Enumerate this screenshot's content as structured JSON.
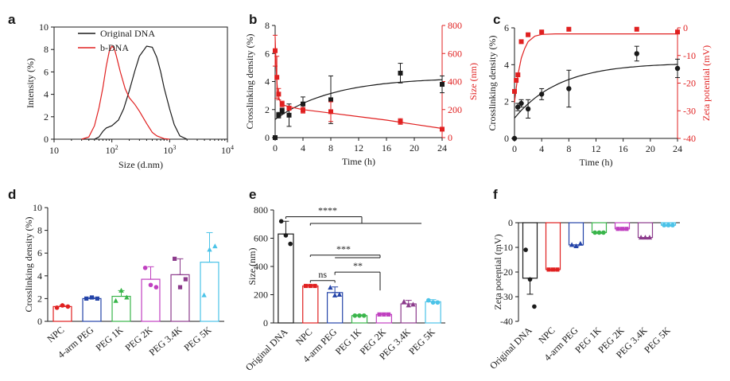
{
  "panels": {
    "a": "a",
    "b": "b",
    "c": "c",
    "d": "d",
    "e": "e",
    "f": "f"
  },
  "chart_data": [
    {
      "id": "a",
      "type": "line",
      "xlabel": "Size (d.nm)",
      "ylabel": "Intensity (%)",
      "xscale": "log",
      "xlim": [
        10,
        10000
      ],
      "ylim": [
        0,
        10
      ],
      "xtick_values": [
        10,
        100,
        1000,
        10000
      ],
      "xtick_labels": [
        [
          "10"
        ],
        [
          "10",
          "2"
        ],
        [
          "10",
          "3"
        ],
        [
          "10",
          "4"
        ]
      ],
      "yticks": [
        0,
        2,
        4,
        6,
        8,
        10
      ],
      "legend_position": "top-right",
      "series": [
        {
          "name": "Original DNA",
          "color": "#1a1a1a",
          "x": [
            30,
            50,
            60,
            70,
            80,
            100,
            130,
            160,
            200,
            250,
            300,
            400,
            500,
            600,
            700,
            800,
            1000,
            1200,
            1500,
            2000
          ],
          "y": [
            0,
            0,
            0.2,
            0.7,
            1.0,
            1.2,
            1.7,
            2.7,
            4.3,
            6.1,
            7.4,
            8.3,
            8.2,
            7.3,
            6.0,
            4.6,
            2.7,
            1.3,
            0.3,
            0
          ]
        },
        {
          "name": "b-DNA",
          "color": "#e02020",
          "x": [
            30,
            40,
            50,
            60,
            70,
            80,
            90,
            100,
            110,
            120,
            140,
            170,
            200,
            250,
            300,
            400,
            500,
            600,
            800,
            1000
          ],
          "y": [
            0,
            0.2,
            1.2,
            2.8,
            4.6,
            6.5,
            7.8,
            8.3,
            8.1,
            7.4,
            6.0,
            4.5,
            3.7,
            3.1,
            2.5,
            1.4,
            0.6,
            0.3,
            0.05,
            0
          ]
        }
      ]
    },
    {
      "id": "b",
      "type": "scatter",
      "xlabel": "Time (h)",
      "ylabel": "Crosslinking density (%)",
      "y2label": "Size (nm)",
      "xlim": [
        0,
        24
      ],
      "ylim": [
        0,
        8
      ],
      "y2lim": [
        0,
        800
      ],
      "xticks": [
        0,
        4,
        8,
        12,
        16,
        20,
        24
      ],
      "yticks": [
        0,
        2,
        4,
        6,
        8
      ],
      "y2ticks": [
        0,
        200,
        400,
        600,
        800
      ],
      "series": [
        {
          "name": "",
          "axis": "left",
          "color": "#1a1a1a",
          "marker": "square",
          "x": [
            0,
            0.5,
            1,
            2,
            4,
            8,
            18,
            24
          ],
          "y": [
            0,
            1.6,
            1.9,
            1.6,
            2.4,
            2.7,
            4.6,
            3.8
          ],
          "err": [
            0,
            0.2,
            0.2,
            0.8,
            0.5,
            1.7,
            0.7,
            0.6
          ],
          "fit": {
            "a": 4.3,
            "b": 3.0,
            "k": 0.12
          }
        },
        {
          "name": "",
          "axis": "right",
          "color": "#e02020",
          "marker": "square",
          "x": [
            0,
            0.25,
            0.5,
            1,
            2,
            4,
            8,
            18,
            24
          ],
          "y": [
            620,
            430,
            310,
            240,
            210,
            195,
            185,
            115,
            60
          ],
          "err": [
            110,
            150,
            40,
            20,
            15,
            20,
            70,
            20,
            0
          ],
          "fit": {
            "points": [
              [
                0,
                720
              ],
              [
                0.1,
                560
              ],
              [
                0.2,
                430
              ],
              [
                0.35,
                330
              ],
              [
                0.6,
                270
              ],
              [
                1,
                235
              ],
              [
                2,
                220
              ],
              [
                4,
                200
              ],
              [
                8,
                175
              ],
              [
                12,
                150
              ],
              [
                16,
                125
              ],
              [
                20,
                95
              ],
              [
                24,
                65
              ]
            ]
          }
        }
      ]
    },
    {
      "id": "c",
      "type": "scatter",
      "xlabel": "Time (h)",
      "ylabel": "Crosslinking density (%)",
      "y2label": "Zeta potential (mV)",
      "xlim": [
        0,
        24
      ],
      "ylim": [
        0,
        6
      ],
      "y2lim": [
        -40,
        0
      ],
      "xticks": [
        0,
        4,
        8,
        12,
        16,
        20,
        24
      ],
      "yticks": [
        0,
        2,
        4,
        6
      ],
      "y2ticks": [
        0,
        -10,
        -20,
        -30,
        -40
      ],
      "series": [
        {
          "name": "",
          "axis": "left",
          "color": "#1a1a1a",
          "marker": "circle",
          "x": [
            0,
            0.5,
            1,
            2,
            4,
            8,
            18,
            24
          ],
          "y": [
            0,
            1.7,
            1.9,
            1.6,
            2.4,
            2.7,
            4.6,
            3.8
          ],
          "err": [
            0,
            0.2,
            0.2,
            0.5,
            0.3,
            1.0,
            0.4,
            0.5
          ],
          "fit": {
            "a": 4.1,
            "b": 3.0,
            "k": 0.15
          }
        },
        {
          "name": "",
          "axis": "right",
          "color": "#e02020",
          "marker": "square",
          "x": [
            0,
            0.25,
            0.5,
            1,
            2,
            4,
            8,
            18,
            24
          ],
          "y": [
            -23,
            -19,
            -17,
            -5,
            -2.5,
            -1.5,
            -0.5,
            -0.5,
            -1.5
          ],
          "err": [
            0,
            0,
            0,
            0,
            0,
            0,
            0,
            0,
            0
          ],
          "fit": {
            "points": [
              [
                0,
                -27
              ],
              [
                0.25,
                -22
              ],
              [
                0.5,
                -17
              ],
              [
                1,
                -11
              ],
              [
                1.5,
                -7.5
              ],
              [
                2,
                -5
              ],
              [
                3,
                -3
              ],
              [
                4,
                -2.4
              ],
              [
                6,
                -2.2
              ],
              [
                10,
                -2.2
              ],
              [
                16,
                -2.2
              ],
              [
                24,
                -2.2
              ]
            ]
          }
        }
      ]
    },
    {
      "id": "d",
      "type": "bar",
      "ylabel": "Crosslinking density (%)",
      "ylim": [
        0,
        10
      ],
      "yticks": [
        0,
        2,
        4,
        6,
        8,
        10
      ],
      "categories": [
        "NPC",
        "4-arm PEG",
        "PEG 1K",
        "PEG 2K",
        "PEG 3.4K",
        "PEG 5K"
      ],
      "values": [
        1.3,
        2.0,
        2.2,
        3.7,
        4.1,
        5.2
      ],
      "err": [
        0.1,
        0.1,
        0.5,
        1.1,
        1.4,
        2.6
      ],
      "colors": [
        "#e02020",
        "#2444a8",
        "#39b54a",
        "#c040c0",
        "#8c3b8c",
        "#4cc3e8"
      ],
      "points": [
        [
          1.2,
          1.4,
          1.3
        ],
        [
          2.0,
          2.1,
          2.0
        ],
        [
          1.8,
          2.7,
          2.1
        ],
        [
          4.7,
          3.2,
          3.0
        ],
        [
          5.5,
          3.0,
          3.7
        ],
        [
          2.3,
          6.3,
          6.6
        ]
      ]
    },
    {
      "id": "e",
      "type": "bar",
      "ylabel": "Size (nm)",
      "ylim": [
        0,
        800
      ],
      "yticks": [
        0,
        200,
        400,
        600,
        800
      ],
      "categories": [
        "Original DNA",
        "NPC",
        "4-arm PEG",
        "PEG 1K",
        "PEG 2K",
        "PEG 3.4K",
        "PEG 5K"
      ],
      "values": [
        630,
        262,
        215,
        52,
        60,
        135,
        150
      ],
      "err": [
        90,
        8,
        40,
        5,
        10,
        25,
        15
      ],
      "colors": [
        "#1a1a1a",
        "#e02020",
        "#2444a8",
        "#39b54a",
        "#c040c0",
        "#8c3b8c",
        "#4cc3e8"
      ],
      "points": [
        [
          720,
          620,
          560
        ],
        [
          262,
          262,
          262
        ],
        [
          250,
          195,
          200
        ],
        [
          52,
          52,
          52
        ],
        [
          60,
          60,
          60
        ],
        [
          150,
          125,
          130
        ],
        [
          160,
          145,
          145
        ]
      ],
      "significance": [
        "****",
        "***",
        "**",
        "ns"
      ]
    },
    {
      "id": "f",
      "type": "bar",
      "ylabel": "Zeta potential (mV)",
      "ylim": [
        -40,
        0
      ],
      "yticks": [
        0,
        -10,
        -20,
        -30,
        -40
      ],
      "categories": [
        "Original DNA",
        "NPC",
        "4-arm PEG",
        "PEG 1K",
        "PEG 2K",
        "PEG 3.4K",
        "PEG 5K"
      ],
      "values": [
        -22.5,
        -19,
        -9,
        -4,
        -2.5,
        -6,
        -1
      ],
      "err": [
        6.5,
        0.3,
        0.6,
        0.4,
        0.3,
        0.3,
        0.4
      ],
      "colors": [
        "#1a1a1a",
        "#e02020",
        "#2444a8",
        "#39b54a",
        "#c040c0",
        "#8c3b8c",
        "#4cc3e8"
      ],
      "points": [
        [
          -11,
          -23,
          -34
        ],
        [
          -19,
          -19,
          -19
        ],
        [
          -9,
          -9.5,
          -8.5
        ],
        [
          -4,
          -4,
          -4
        ],
        [
          -2.5,
          -2.5,
          -2.5
        ],
        [
          -6,
          -6,
          -6
        ],
        [
          -1,
          -1,
          -1
        ]
      ]
    }
  ]
}
